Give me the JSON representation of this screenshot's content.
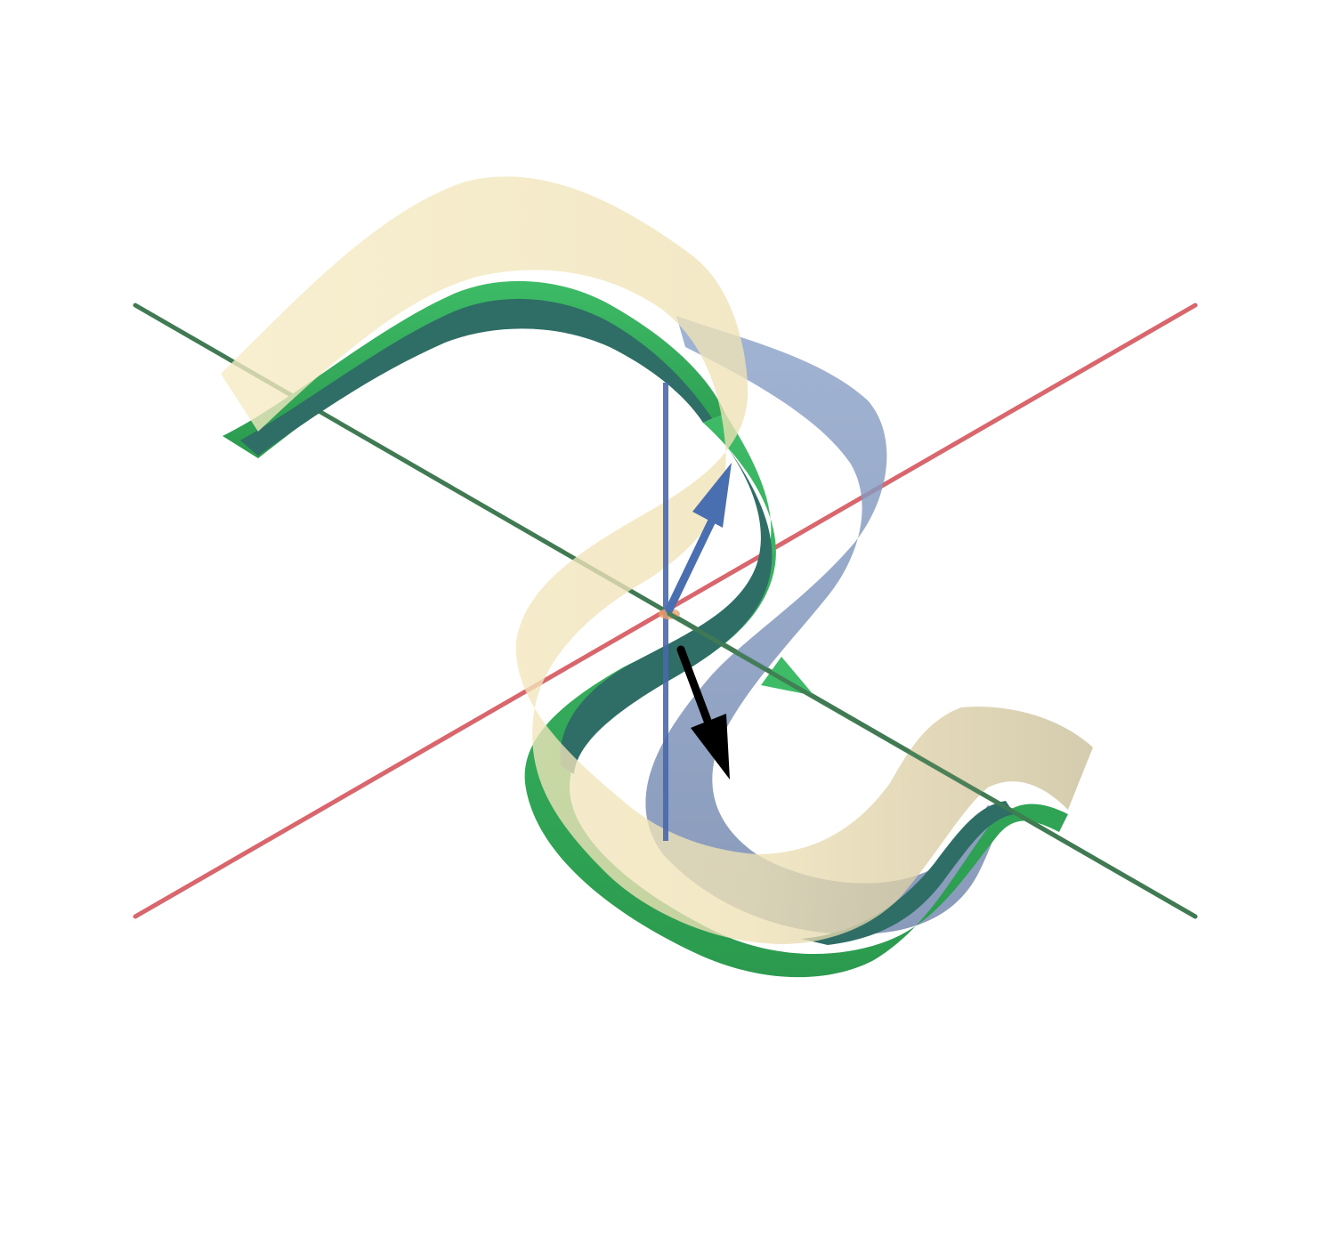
{
  "scene": {
    "background": "#ffffff",
    "axes": [
      {
        "name": "x-axis",
        "color": "#d9666c"
      },
      {
        "name": "y-axis",
        "color": "#3f7a52"
      },
      {
        "name": "z-axis",
        "color": "#4a68a8"
      }
    ],
    "surfaces": [
      {
        "name": "cream-ribbon",
        "color": "#f2e4b3"
      },
      {
        "name": "blue-ribbon",
        "color": "#7f95bd"
      },
      {
        "name": "green-ribbon",
        "color": "#33aa55",
        "inner_color": "#2f6e66"
      }
    ],
    "vectors": [
      {
        "name": "blue-vector",
        "color": "#4a6fb0"
      },
      {
        "name": "black-vector",
        "color": "#000000"
      },
      {
        "name": "green-vector",
        "color": "#3dbb66"
      }
    ]
  }
}
